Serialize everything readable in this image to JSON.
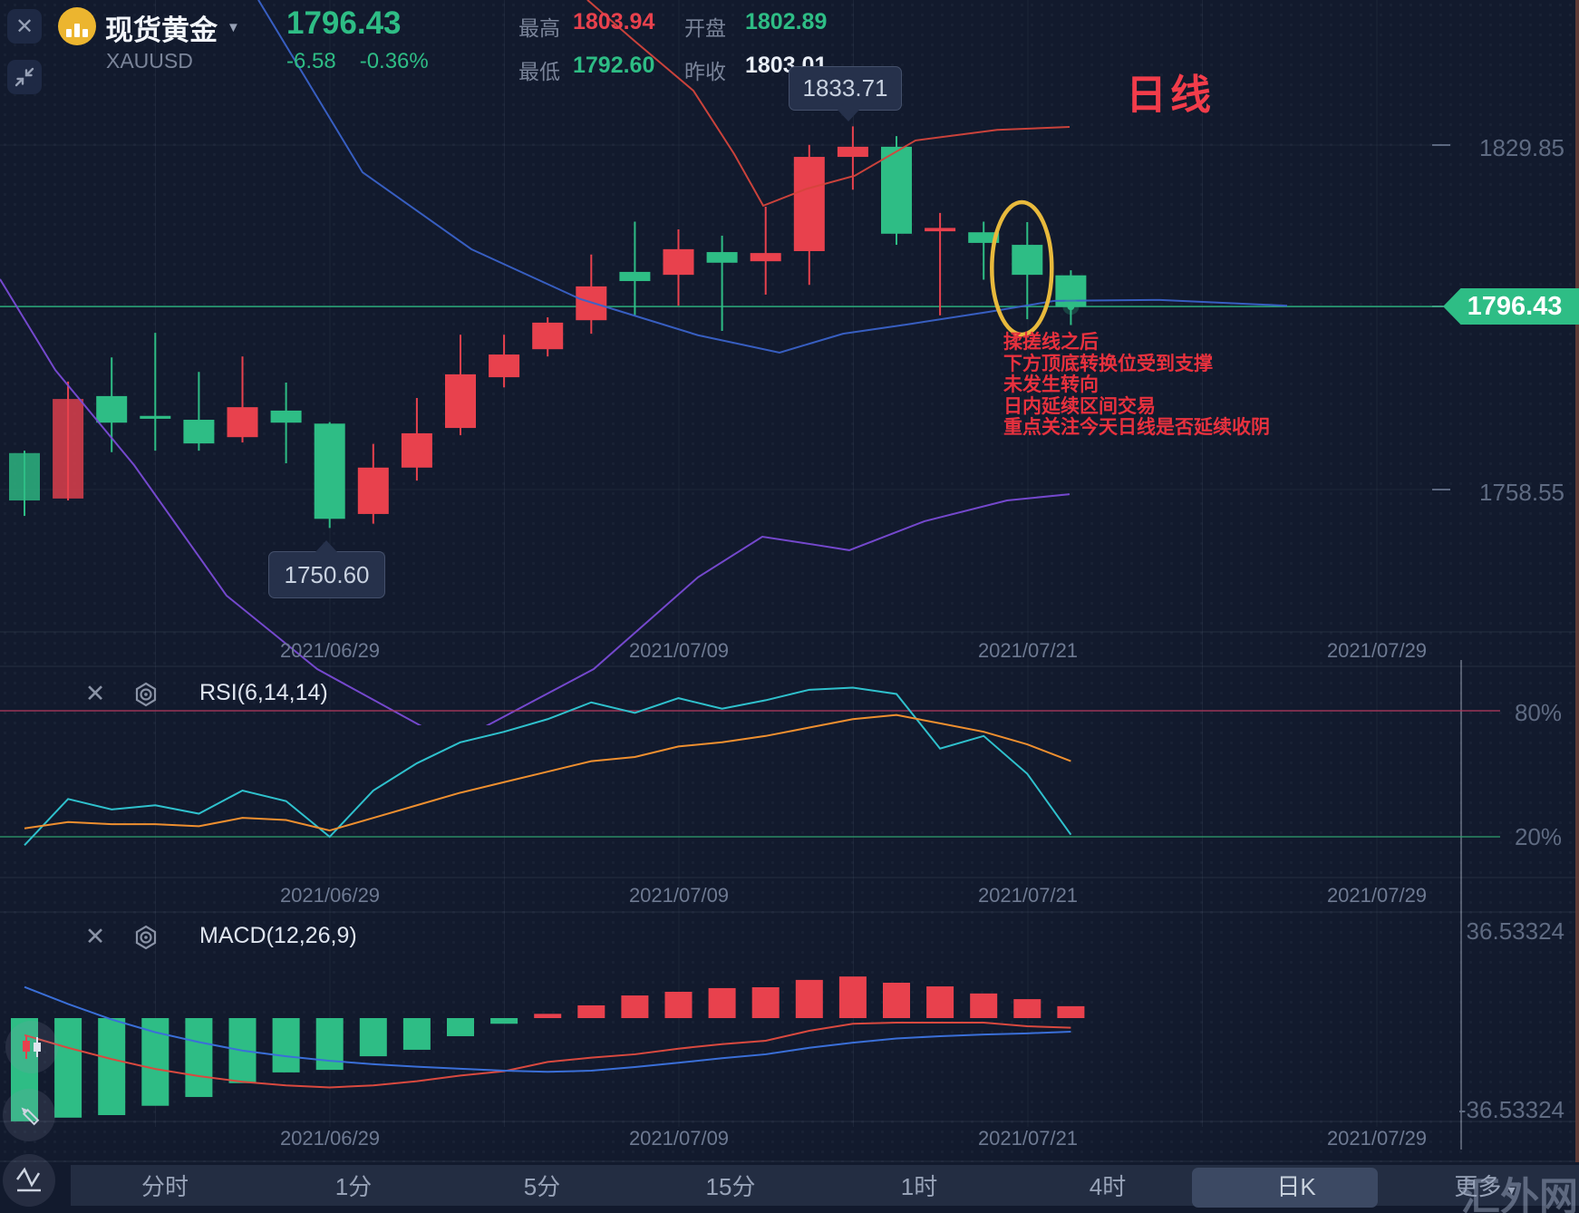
{
  "header": {
    "symbol_name": "现货黄金",
    "symbol_code": "XAUUSD",
    "last_price": "1796.43",
    "change": "-6.58",
    "change_pct": "-0.36%",
    "stats": [
      {
        "label": "最高",
        "value": "1803.94",
        "color": "red"
      },
      {
        "label": "最低",
        "value": "1792.60",
        "color": "green"
      },
      {
        "label": "开盘",
        "value": "1802.89",
        "color": "green"
      },
      {
        "label": "昨收",
        "value": "1803.01",
        "color": "white"
      }
    ]
  },
  "main_chart": {
    "period_label": "日线",
    "y_axis_labels": [
      "1829.85",
      "1758.55"
    ],
    "current_price_tag": "1796.43",
    "high_tooltip": "1833.71",
    "low_tooltip": "1750.60",
    "date_labels": [
      "2021/06/29",
      "2021/07/09",
      "2021/07/21",
      "2021/07/29"
    ],
    "annotation_lines": [
      "揉搓线之后",
      "下方顶底转换位受到支撑",
      "未发生转向",
      "日内延续区间交易",
      "重点关注今天日线是否延续收阴"
    ]
  },
  "rsi_panel": {
    "title": "RSI(6,14,14)",
    "level_labels": [
      "80%",
      "20%"
    ]
  },
  "macd_panel": {
    "title": "MACD(12,26,9)",
    "level_labels": [
      "36.53324",
      "-36.53324"
    ]
  },
  "toolbar": {
    "items": [
      "分时",
      "1分",
      "5分",
      "15分",
      "1时",
      "4时",
      "日K",
      "更多"
    ],
    "active_item": "日K",
    "watermark": "汇外网"
  },
  "colors": {
    "up": "#e8414d",
    "down": "#2ebd85",
    "rsi_fast": "#2fc1cd",
    "rsi_slow": "#ef8f2f",
    "macd_dif": "#d9493f",
    "macd_dea": "#3a6fd8",
    "ma_blue": "#3a62c9",
    "ma_purple": "#7a4bd6",
    "ma_red": "#d5443c",
    "price_line": "#2ebd85",
    "level_80": "#b13a5e",
    "level_20": "#2f9e6e",
    "ellipse": "#e8b93c",
    "annotation": "#e8313e"
  },
  "chart_data": [
    {
      "type": "candlestick",
      "title": "现货黄金 XAUUSD 日线",
      "dates": [
        "06/18",
        "06/21",
        "06/22",
        "06/23",
        "06/24",
        "06/25",
        "06/28",
        "06/29",
        "06/30",
        "07/01",
        "07/02",
        "07/05",
        "07/06",
        "07/07",
        "07/08",
        "07/09",
        "07/12",
        "07/13",
        "07/14",
        "07/15",
        "07/16",
        "07/19",
        "07/20",
        "07/21",
        "07/22"
      ],
      "open": [
        1766.1,
        1756.7,
        1777.9,
        1773.8,
        1773.0,
        1769.4,
        1774.9,
        1772.2,
        1753.5,
        1763.1,
        1771.3,
        1781.8,
        1787.6,
        1793.6,
        1803.6,
        1803.0,
        1807.7,
        1805.8,
        1807.9,
        1827.4,
        1829.5,
        1812.0,
        1811.8,
        1809.2,
        1802.89
      ],
      "high": [
        1766.6,
        1780.9,
        1785.9,
        1791.0,
        1782.9,
        1786.1,
        1780.7,
        1772.5,
        1768.0,
        1777.5,
        1790.6,
        1790.6,
        1794.2,
        1807.2,
        1814.0,
        1812.4,
        1811.1,
        1817.1,
        1829.9,
        1833.71,
        1831.7,
        1815.8,
        1814.0,
        1813.9,
        1803.94
      ],
      "low": [
        1753.1,
        1756.3,
        1766.3,
        1766.6,
        1766.6,
        1768.3,
        1764.0,
        1750.6,
        1751.5,
        1760.4,
        1769.8,
        1779.7,
        1786.1,
        1790.8,
        1794.6,
        1796.6,
        1791.4,
        1798.9,
        1800.9,
        1820.6,
        1809.2,
        1794.6,
        1802.0,
        1793.8,
        1792.6
      ],
      "close": [
        1756.3,
        1777.3,
        1772.4,
        1773.2,
        1768.1,
        1775.6,
        1772.4,
        1752.5,
        1763.1,
        1770.2,
        1782.4,
        1786.5,
        1793.1,
        1800.6,
        1801.7,
        1808.3,
        1805.5,
        1807.5,
        1827.4,
        1829.5,
        1811.5,
        1812.7,
        1809.6,
        1803.0,
        1796.43
      ],
      "ylim": [
        1744.0,
        1859.9
      ],
      "current_price": 1796.43,
      "marked_high": 1833.71,
      "marked_low": 1750.6,
      "ma_lines": [
        {
          "name": "ma-blue",
          "points": [
            [
              285,
              1859.9
            ],
            [
              400,
              1824.2
            ],
            [
              520,
              1808.3
            ],
            [
              640,
              1798.0
            ],
            [
              770,
              1790.5
            ],
            [
              860,
              1786.9
            ],
            [
              930,
              1790.8
            ],
            [
              1000,
              1792.7
            ],
            [
              1090,
              1795.3
            ],
            [
              1163,
              1797.6
            ],
            [
              1280,
              1797.8
            ],
            [
              1420,
              1796.6
            ]
          ]
        },
        {
          "name": "ma-purple",
          "points": [
            [
              0,
              1802.1
            ],
            [
              61,
              1783.3
            ],
            [
              148,
              1763.6
            ],
            [
              250,
              1736.6
            ],
            [
              350,
              1721.4
            ],
            [
              500,
              1706.0
            ],
            [
              655,
              1721.4
            ],
            [
              770,
              1740.4
            ],
            [
              841,
              1748.8
            ],
            [
              900,
              1747.1
            ],
            [
              937,
              1746.0
            ],
            [
              1020,
              1752.0
            ],
            [
              1111,
              1756.3
            ],
            [
              1180,
              1757.6
            ]
          ]
        },
        {
          "name": "ma-red",
          "points": [
            [
              648,
              1859.9
            ],
            [
              700,
              1851.4
            ],
            [
              765,
              1841.1
            ],
            [
              810,
              1828.0
            ],
            [
              842,
              1817.3
            ],
            [
              890,
              1820.8
            ],
            [
              943,
              1823.5
            ],
            [
              1010,
              1830.8
            ],
            [
              1100,
              1833.0
            ],
            [
              1180,
              1833.6
            ]
          ]
        }
      ]
    },
    {
      "type": "line",
      "title": "RSI(6,14,14)",
      "ylim": [
        0,
        100
      ],
      "levels": [
        80,
        20
      ],
      "series": [
        {
          "name": "RSI6",
          "values": [
            16,
            38,
            33,
            35,
            31,
            42,
            37,
            20,
            42,
            55,
            65,
            70,
            76,
            84,
            79,
            86,
            81,
            85,
            90,
            91,
            88,
            62,
            68,
            50,
            21
          ]
        },
        {
          "name": "RSI14",
          "values": [
            24,
            27,
            26,
            26,
            25,
            29,
            28,
            23,
            29,
            35,
            41,
            46,
            51,
            56,
            58,
            63,
            65,
            68,
            72,
            76,
            78,
            74,
            70,
            64,
            56
          ]
        }
      ]
    },
    {
      "type": "bar",
      "title": "MACD(12,26,9)",
      "ylim": [
        -36.53324,
        36.53324
      ],
      "histogram": [
        -36.5,
        -35.2,
        -34.3,
        -31,
        -27.9,
        -23,
        -19.2,
        -18.3,
        -13.5,
        -11.2,
        -6.4,
        -2,
        1.5,
        4.5,
        8,
        9.3,
        10.6,
        10.9,
        13.5,
        14.7,
        12.5,
        11.2,
        8.7,
        6.7,
        4.2
      ],
      "series": [
        {
          "name": "DIF",
          "values": [
            -6,
            -10.5,
            -14.5,
            -18,
            -20.5,
            -22.5,
            -23.8,
            -24.5,
            -23.8,
            -22.3,
            -20.3,
            -18.8,
            -15.5,
            -14,
            -12.8,
            -10.8,
            -9.2,
            -8,
            -4.5,
            -2,
            -1.6,
            -1.6,
            -1.6,
            -2.9,
            -3.4
          ]
        },
        {
          "name": "DEA",
          "values": [
            11,
            5,
            -0.5,
            -5,
            -8.5,
            -11.5,
            -13.5,
            -15.1,
            -16.3,
            -17.2,
            -17.9,
            -18.6,
            -19,
            -18.6,
            -17.3,
            -15.8,
            -14.2,
            -12.8,
            -10.5,
            -8.7,
            -7.2,
            -6.4,
            -5.8,
            -5.4,
            -4.8
          ]
        }
      ]
    }
  ]
}
